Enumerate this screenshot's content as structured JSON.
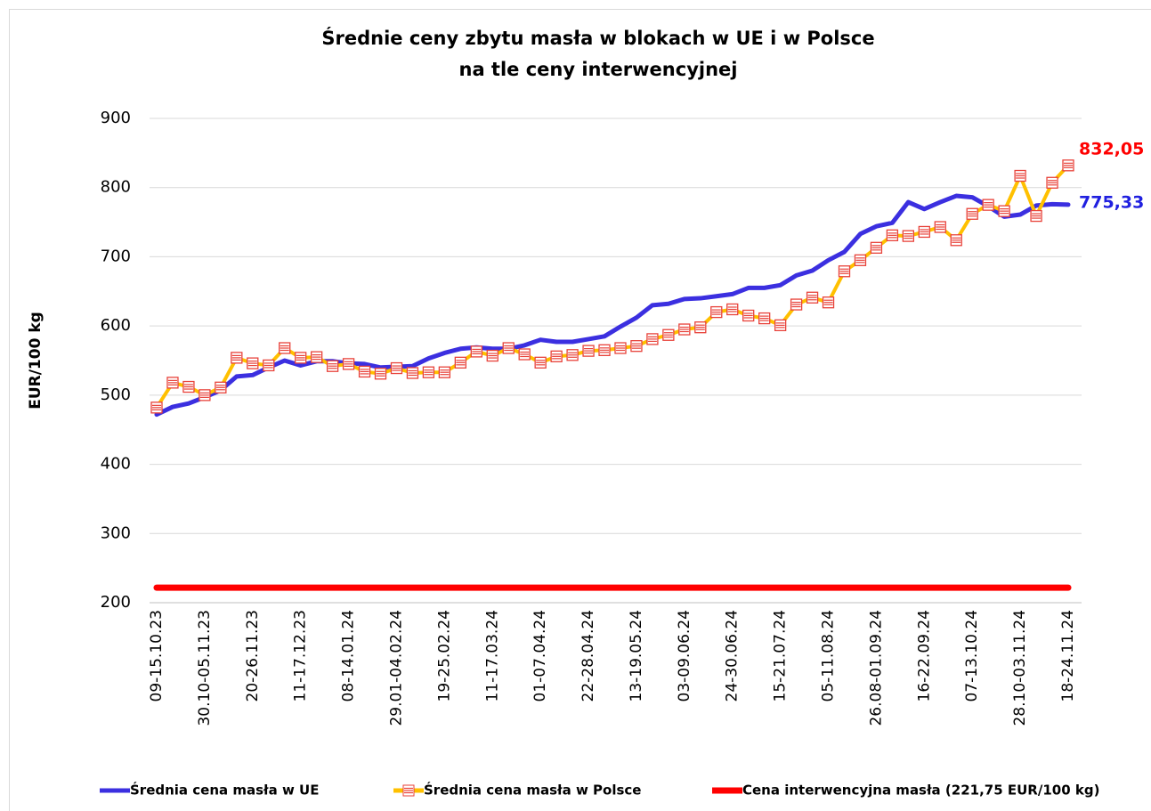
{
  "chart_data": {
    "type": "line",
    "title": [
      "Średnie ceny zbytu masła w blokach w UE i w Polsce",
      "na tle ceny interwencyjnej"
    ],
    "ylabel": "EUR/100 kg",
    "categories": [
      "09-15.10.23",
      null,
      null,
      "30.10-05.11.23",
      null,
      null,
      "20-26.11.23",
      null,
      null,
      "11-17.12.23",
      null,
      null,
      "08-14.01.24",
      null,
      null,
      "29.01-04.02.24",
      null,
      null,
      "19-25.02.24",
      null,
      null,
      "11-17.03.24",
      null,
      null,
      "01-07.04.24",
      null,
      null,
      "22-28.04.24",
      null,
      null,
      "13-19.05.24",
      null,
      null,
      "03-09.06.24",
      null,
      null,
      "24-30.06.24",
      null,
      null,
      "15-21.07.24",
      null,
      null,
      "05-11.08.24",
      null,
      null,
      "26.08-01.09.24",
      null,
      null,
      "16-22.09.24",
      null,
      null,
      "07-13.10.24",
      null,
      null,
      "28.10-03.11.24",
      null,
      null,
      "18-24.11.24"
    ],
    "series": [
      {
        "name": "Średnia cena masła w UE",
        "color": "#3b2fe0",
        "values": [
          472,
          483,
          488,
          497,
          507,
          527,
          529,
          540,
          550,
          543,
          549,
          549,
          546,
          545,
          540,
          541,
          542,
          553,
          561,
          567,
          569,
          567,
          567,
          572,
          580,
          577,
          577,
          581,
          585,
          599,
          612,
          630,
          632,
          639,
          640,
          643,
          646,
          655,
          655,
          659,
          673,
          680,
          695,
          707,
          733,
          744,
          749,
          779,
          769,
          779,
          788,
          786,
          773,
          758,
          761,
          774,
          776,
          775.33
        ],
        "value_labels": [
          null,
          null,
          null,
          null,
          null,
          null,
          null,
          null,
          null,
          null,
          null,
          null,
          null,
          null,
          null,
          null,
          null,
          null,
          null,
          null,
          null,
          null,
          null,
          null,
          null,
          null,
          null,
          null,
          null,
          null,
          null,
          null,
          null,
          null,
          null,
          null,
          null,
          null,
          null,
          null,
          null,
          null,
          null,
          null,
          null,
          null,
          null,
          null,
          null,
          null,
          null,
          null,
          null,
          null,
          null,
          null,
          null,
          "775,33"
        ]
      },
      {
        "name": "Średnia cena masła w Polsce",
        "color": "#ffc000",
        "marker": "square",
        "values": [
          482,
          518,
          512,
          500,
          511,
          554,
          546,
          543,
          568,
          554,
          555,
          542,
          545,
          534,
          531,
          539,
          532,
          533,
          533,
          547,
          563,
          557,
          568,
          559,
          547,
          556,
          558,
          564,
          565,
          568,
          571,
          581,
          587,
          595,
          598,
          620,
          624,
          615,
          611,
          601,
          631,
          641,
          634,
          679,
          695,
          713,
          731,
          730,
          736,
          743,
          724,
          762,
          775,
          766,
          817,
          759,
          807,
          832.05
        ],
        "value_labels": [
          null,
          null,
          null,
          null,
          null,
          null,
          null,
          null,
          null,
          null,
          null,
          null,
          null,
          null,
          null,
          null,
          null,
          null,
          null,
          null,
          null,
          null,
          null,
          null,
          null,
          null,
          null,
          null,
          null,
          null,
          null,
          null,
          null,
          null,
          null,
          null,
          null,
          null,
          null,
          null,
          null,
          null,
          null,
          null,
          null,
          null,
          null,
          null,
          null,
          null,
          null,
          null,
          null,
          null,
          null,
          null,
          null,
          "832,05"
        ]
      },
      {
        "name": "Cena interwencyjna masła (221,75 EUR/100 kg)",
        "color": "#ff0000",
        "values": [
          221.75,
          221.75,
          221.75,
          221.75,
          221.75,
          221.75,
          221.75,
          221.75,
          221.75,
          221.75,
          221.75,
          221.75,
          221.75,
          221.75,
          221.75,
          221.75,
          221.75,
          221.75,
          221.75,
          221.75,
          221.75,
          221.75,
          221.75,
          221.75,
          221.75,
          221.75,
          221.75,
          221.75,
          221.75,
          221.75,
          221.75,
          221.75,
          221.75,
          221.75,
          221.75,
          221.75,
          221.75,
          221.75,
          221.75,
          221.75,
          221.75,
          221.75,
          221.75,
          221.75,
          221.75,
          221.75,
          221.75,
          221.75,
          221.75,
          221.75,
          221.75,
          221.75,
          221.75,
          221.75,
          221.75,
          221.75,
          221.75,
          221.75
        ]
      }
    ],
    "ylim": [
      200,
      900
    ],
    "yticks": [
      200,
      300,
      400,
      500,
      600,
      700,
      800,
      900
    ],
    "grid": true,
    "legend": "bottom"
  }
}
